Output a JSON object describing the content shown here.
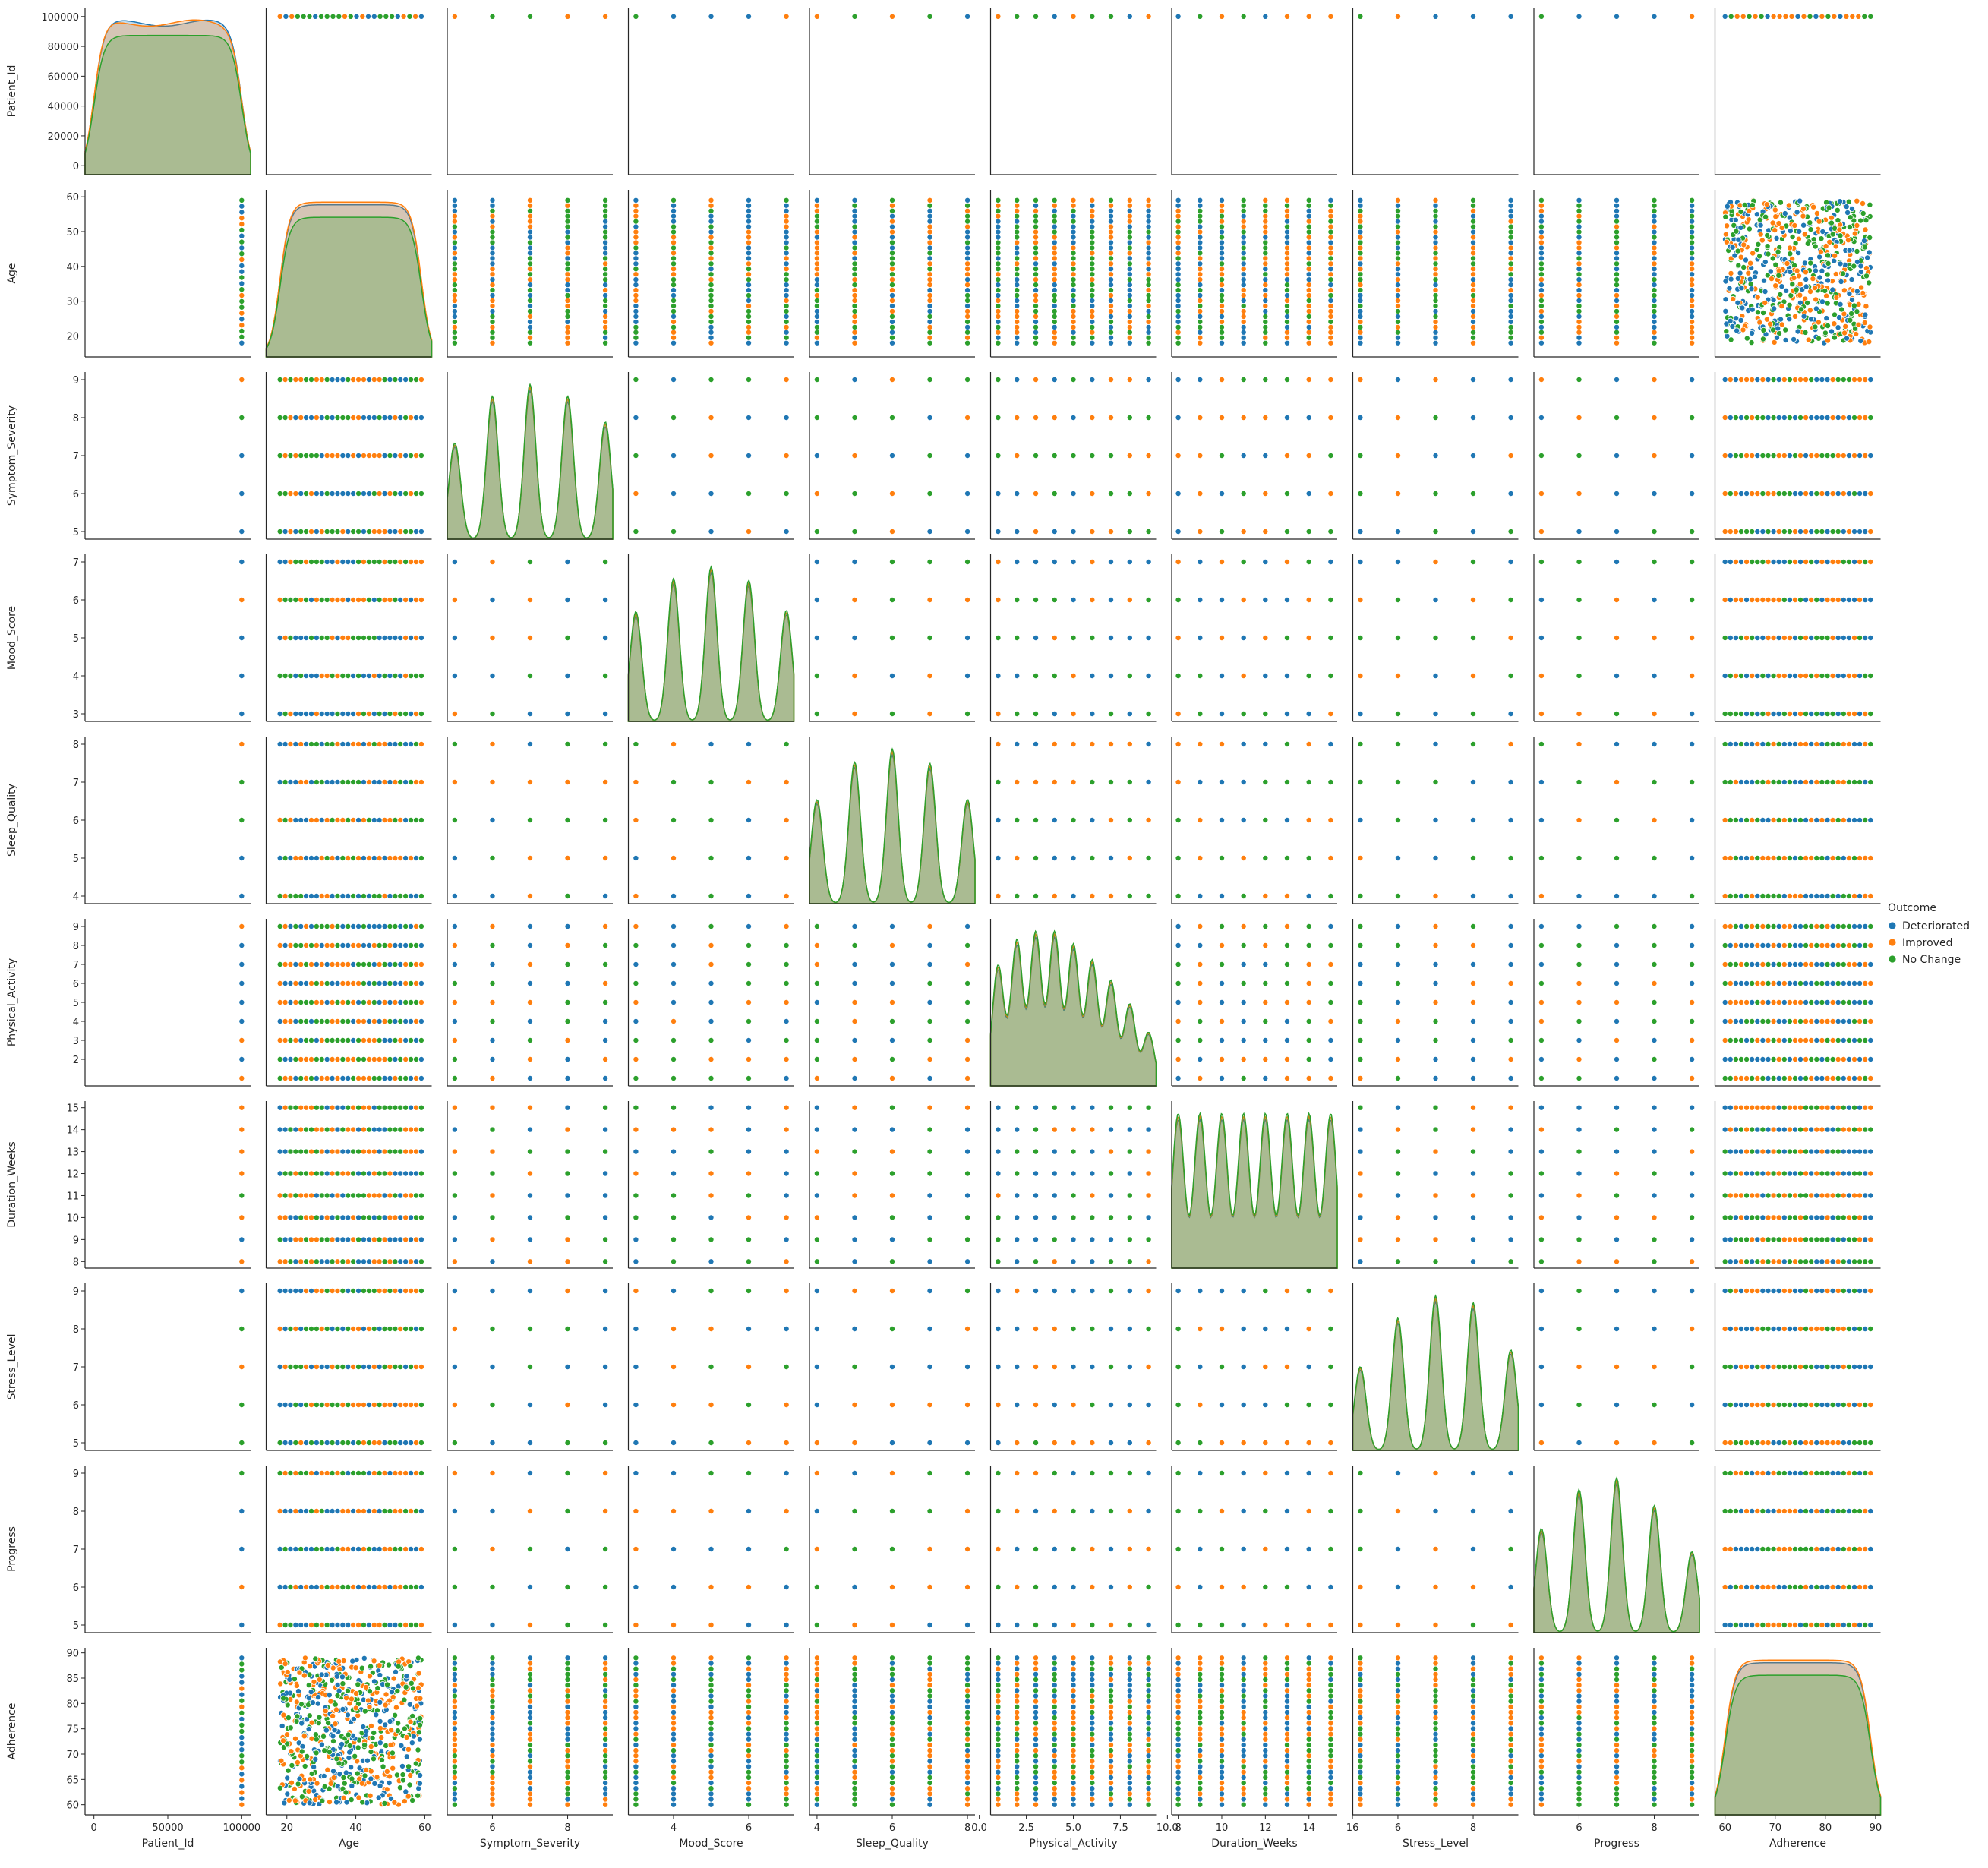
{
  "chart_data": {
    "type": "scatter",
    "kind": "pairplot",
    "title": "",
    "hue": "Outcome",
    "legend": {
      "title": "Outcome",
      "placement": "center-right",
      "entries": [
        "Deteriorated",
        "Improved",
        "No Change"
      ]
    },
    "colors": {
      "Deteriorated": "#1f77b4",
      "Improved": "#ff7f0e",
      "No Change": "#2ca02c",
      "outline": "#ffffff"
    },
    "variables": [
      {
        "name": "Patient_Id",
        "range": [
          -6000,
          106000
        ],
        "ticks": [
          0,
          20000,
          40000,
          60000,
          80000,
          100000
        ],
        "tick_labels": [
          "0",
          "20000",
          "40000",
          "60000",
          "80000",
          "100000"
        ],
        "x_tick_labels": [
          "0",
          "50000",
          "100000"
        ],
        "x_ticks": [
          0,
          50000,
          100000
        ],
        "type": "continuous",
        "data_min": 1,
        "data_max": 100000
      },
      {
        "name": "Age",
        "range": [
          14,
          62
        ],
        "ticks": [
          20,
          30,
          40,
          50,
          60
        ],
        "tick_labels": [
          "20",
          "30",
          "40",
          "50",
          "60"
        ],
        "x_ticks": [
          20,
          40,
          60
        ],
        "x_tick_labels": [
          "20",
          "40",
          "60"
        ],
        "type": "continuous",
        "data_min": 18,
        "data_max": 59
      },
      {
        "name": "Symptom_Severity",
        "range": [
          4.8,
          9.2
        ],
        "ticks": [
          5,
          6,
          7,
          8,
          9
        ],
        "tick_labels": [
          "5",
          "6",
          "7",
          "8",
          "9"
        ],
        "x_ticks": [
          6,
          8
        ],
        "x_tick_labels": [
          "6",
          "8"
        ],
        "type": "discrete",
        "levels": [
          5,
          6,
          7,
          8,
          9
        ],
        "density": [
          0.82,
          1.22,
          1.32,
          1.22,
          1.0
        ]
      },
      {
        "name": "Mood_Score",
        "range": [
          2.8,
          7.2
        ],
        "ticks": [
          3,
          4,
          5,
          6,
          7
        ],
        "tick_labels": [
          "3",
          "4",
          "5",
          "6",
          "7"
        ],
        "x_ticks": [
          4,
          6
        ],
        "x_tick_labels": [
          "4",
          "6"
        ],
        "type": "discrete",
        "levels": [
          3,
          4,
          5,
          6,
          7
        ],
        "density": [
          0.73,
          0.95,
          1.03,
          0.94,
          0.74
        ]
      },
      {
        "name": "Sleep_Quality",
        "range": [
          3.8,
          8.2
        ],
        "ticks": [
          4,
          5,
          6,
          7,
          8
        ],
        "tick_labels": [
          "4",
          "5",
          "6",
          "7",
          "8"
        ],
        "x_ticks": [
          4,
          6,
          8
        ],
        "x_tick_labels": [
          "4",
          "6",
          "8"
        ],
        "type": "discrete",
        "levels": [
          4,
          5,
          6,
          7,
          8
        ],
        "density": [
          0.72,
          0.98,
          1.07,
          0.97,
          0.72
        ]
      },
      {
        "name": "Physical_Activity",
        "range": [
          0.6,
          9.4
        ],
        "ticks": [
          2,
          3,
          4,
          5,
          6,
          7,
          8,
          9
        ],
        "tick_labels": [
          "2",
          "3",
          "4",
          "5",
          "6",
          "7",
          "8",
          "9"
        ],
        "x_ticks": [
          0,
          2.5,
          5,
          7.5,
          10
        ],
        "x_tick_labels": [
          "0.0",
          "2.5",
          "5.0",
          "7.5",
          "10.0"
        ],
        "type": "discrete",
        "levels": [
          1,
          2,
          3,
          4,
          5,
          6,
          7,
          8,
          9
        ],
        "density": [
          0.77,
          0.93,
          0.98,
          0.98,
          0.9,
          0.8,
          0.67,
          0.52,
          0.34
        ]
      },
      {
        "name": "Duration_Weeks",
        "range": [
          7.7,
          15.3
        ],
        "ticks": [
          8,
          9,
          10,
          11,
          12,
          13,
          14,
          15
        ],
        "tick_labels": [
          "8",
          "9",
          "10",
          "11",
          "12",
          "13",
          "14",
          "15"
        ],
        "x_ticks": [
          8,
          10,
          12,
          14,
          16
        ],
        "x_tick_labels": [
          "8",
          "10",
          "12",
          "14",
          "16"
        ],
        "type": "discrete",
        "levels": [
          8,
          9,
          10,
          11,
          12,
          13,
          14,
          15
        ],
        "density": [
          0.88,
          0.88,
          0.88,
          0.88,
          0.88,
          0.88,
          0.88,
          0.88
        ]
      },
      {
        "name": "Stress_Level",
        "range": [
          4.8,
          9.2
        ],
        "ticks": [
          5,
          6,
          7,
          8,
          9
        ],
        "tick_labels": [
          "5",
          "6",
          "7",
          "8",
          "9"
        ],
        "x_ticks": [
          6,
          8
        ],
        "x_tick_labels": [
          "6",
          "8"
        ],
        "type": "discrete",
        "levels": [
          5,
          6,
          7,
          8,
          9
        ],
        "density": [
          0.6,
          0.95,
          1.11,
          1.06,
          0.72
        ]
      },
      {
        "name": "Progress",
        "range": [
          4.8,
          9.2
        ],
        "ticks": [
          5,
          6,
          7,
          8,
          9
        ],
        "tick_labels": [
          "5",
          "6",
          "7",
          "8",
          "9"
        ],
        "x_ticks": [
          6,
          8
        ],
        "x_tick_labels": [
          "6",
          "8"
        ],
        "type": "discrete",
        "levels": [
          5,
          6,
          7,
          8,
          9
        ],
        "density": [
          0.72,
          0.99,
          1.07,
          0.88,
          0.56
        ]
      },
      {
        "name": "Adherence",
        "range": [
          58,
          91
        ],
        "ticks": [
          60,
          65,
          70,
          75,
          80,
          85,
          90
        ],
        "tick_labels": [
          "60",
          "65",
          "70",
          "75",
          "80",
          "85",
          "90"
        ],
        "x_ticks": [
          60,
          70,
          80,
          90
        ],
        "x_tick_labels": [
          "60",
          "70",
          "80",
          "90"
        ],
        "type": "continuous",
        "data_min": 60,
        "data_max": 89
      }
    ]
  }
}
